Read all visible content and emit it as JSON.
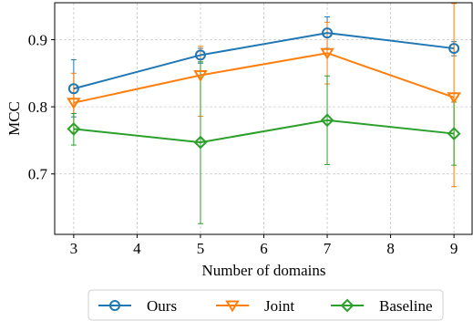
{
  "chart_data": {
    "type": "line",
    "xlabel": "Number of domains",
    "ylabel": "MCC",
    "x": [
      3,
      5,
      7,
      9
    ],
    "xlim": [
      2.7,
      9.3
    ],
    "ylim": [
      0.61,
      0.955
    ],
    "xticks": [
      3,
      4,
      5,
      6,
      7,
      8,
      9
    ],
    "yticks": [
      0.7,
      0.8,
      0.9
    ],
    "ytick_labels": [
      "0.7",
      "0.8",
      "0.9"
    ],
    "grid": true,
    "legend_position": "bottom-center",
    "series": [
      {
        "name": "Ours",
        "color": "#1f77b4",
        "marker": "circle",
        "values": [
          0.827,
          0.877,
          0.91,
          0.887
        ],
        "err_low": [
          0.785,
          0.865,
          0.887,
          0.876
        ],
        "err_high": [
          0.87,
          0.887,
          0.934,
          0.897
        ]
      },
      {
        "name": "Joint",
        "color": "#ff7f0e",
        "marker": "triangle-down",
        "values": [
          0.806,
          0.847,
          0.88,
          0.814
        ],
        "err_low": [
          0.762,
          0.786,
          0.834,
          0.681
        ],
        "err_high": [
          0.85,
          0.89,
          0.926,
          0.954
        ]
      },
      {
        "name": "Baseline",
        "color": "#2ca02c",
        "marker": "diamond",
        "values": [
          0.767,
          0.747,
          0.78,
          0.76
        ],
        "err_low": [
          0.743,
          0.626,
          0.714,
          0.713
        ],
        "err_high": [
          0.79,
          0.867,
          0.846,
          0.807
        ]
      }
    ]
  }
}
